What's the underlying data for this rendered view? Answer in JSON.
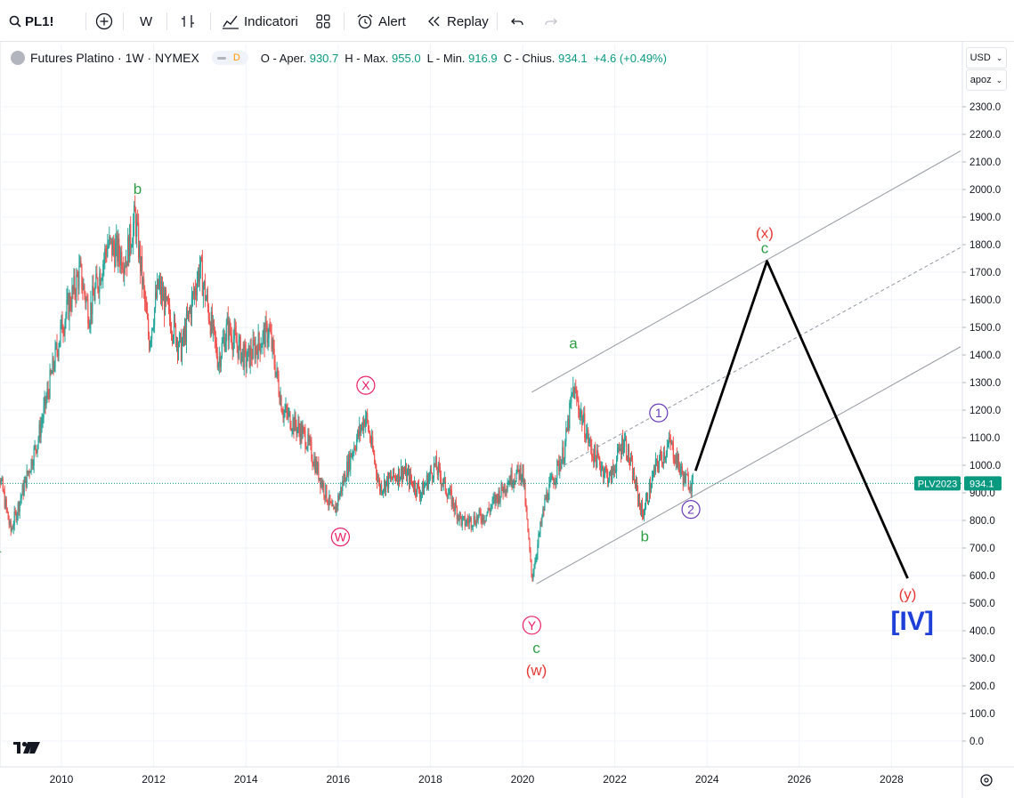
{
  "toolbar": {
    "symbol": "PL1!",
    "interval": "W",
    "indicators_label": "Indicatori",
    "alert_label": "Alert",
    "replay_label": "Replay"
  },
  "legend": {
    "title": "Futures Platino · 1W · NYMEX",
    "badge": "D",
    "open_label": "O - Aper.",
    "open": "930.7",
    "high_label": "H - Max.",
    "high": "955.0",
    "low_label": "L - Min.",
    "low": "916.9",
    "close_label": "C - Chius.",
    "close": "934.1",
    "change": "+4.6 (+0.49%)"
  },
  "price_axis": {
    "currency_button": "USD",
    "scale_button": "apoz",
    "ticks": [
      "2300.0",
      "2200.0",
      "2100.0",
      "2000.0",
      "1900.0",
      "1800.0",
      "1700.0",
      "1600.0",
      "1500.0",
      "1400.0",
      "1300.0",
      "1200.0",
      "1100.0",
      "1000.0",
      "900.0",
      "800.0",
      "700.0",
      "600.0",
      "500.0",
      "400.0",
      "300.0",
      "200.0",
      "100.0",
      "0.0"
    ],
    "last_price_tag": "934.1",
    "contract_tag": "PLV2023"
  },
  "time_axis": {
    "ticks": [
      "2010",
      "2012",
      "2014",
      "2016",
      "2018",
      "2020",
      "2022",
      "2024",
      "2026",
      "2028"
    ]
  },
  "colors": {
    "up": "#26a69a",
    "down": "#ef5350",
    "wave_green": "#2e9e47",
    "wave_pink": "#e91e63",
    "wave_red": "#e53935",
    "wave_purple": "#673ab7",
    "wave_blue": "#1e40d8",
    "projection": "#000000",
    "channel": "#9598a1",
    "last_price": "#089981"
  },
  "chart_data": {
    "type": "candlestick",
    "title": "Futures Platino · 1W · NYMEX",
    "ylim": [
      0,
      2300
    ],
    "x_range": [
      "2009",
      "2028"
    ],
    "price_path": [
      {
        "x": 2008.5,
        "y": 1100
      },
      {
        "x": 2008.9,
        "y": 760
      },
      {
        "x": 2009.5,
        "y": 1100
      },
      {
        "x": 2010.0,
        "y": 1500
      },
      {
        "x": 2010.4,
        "y": 1700
      },
      {
        "x": 2010.6,
        "y": 1550
      },
      {
        "x": 2011.0,
        "y": 1800
      },
      {
        "x": 2011.4,
        "y": 1750
      },
      {
        "x": 2011.6,
        "y": 1900
      },
      {
        "x": 2011.9,
        "y": 1450
      },
      {
        "x": 2012.1,
        "y": 1650
      },
      {
        "x": 2012.6,
        "y": 1420
      },
      {
        "x": 2013.0,
        "y": 1720
      },
      {
        "x": 2013.4,
        "y": 1380
      },
      {
        "x": 2013.6,
        "y": 1500
      },
      {
        "x": 2014.0,
        "y": 1380
      },
      {
        "x": 2014.5,
        "y": 1490
      },
      {
        "x": 2014.8,
        "y": 1200
      },
      {
        "x": 2015.3,
        "y": 1100
      },
      {
        "x": 2015.9,
        "y": 820
      },
      {
        "x": 2016.3,
        "y": 1050
      },
      {
        "x": 2016.6,
        "y": 1180
      },
      {
        "x": 2016.9,
        "y": 920
      },
      {
        "x": 2017.4,
        "y": 980
      },
      {
        "x": 2017.8,
        "y": 900
      },
      {
        "x": 2018.1,
        "y": 1000
      },
      {
        "x": 2018.7,
        "y": 790
      },
      {
        "x": 2019.2,
        "y": 820
      },
      {
        "x": 2019.7,
        "y": 950
      },
      {
        "x": 2020.0,
        "y": 980
      },
      {
        "x": 2020.2,
        "y": 590
      },
      {
        "x": 2020.5,
        "y": 880
      },
      {
        "x": 2020.9,
        "y": 1050
      },
      {
        "x": 2021.1,
        "y": 1280
      },
      {
        "x": 2021.5,
        "y": 1050
      },
      {
        "x": 2021.9,
        "y": 950
      },
      {
        "x": 2022.2,
        "y": 1100
      },
      {
        "x": 2022.6,
        "y": 820
      },
      {
        "x": 2022.9,
        "y": 1000
      },
      {
        "x": 2023.2,
        "y": 1080
      },
      {
        "x": 2023.5,
        "y": 950
      },
      {
        "x": 2023.7,
        "y": 934
      }
    ],
    "last_price": 934.1,
    "projection": [
      {
        "x": 2023.75,
        "y": 980
      },
      {
        "x": 2025.3,
        "y": 1740
      },
      {
        "x": 2028.35,
        "y": 590
      }
    ],
    "channel": [
      {
        "name": "upper",
        "from": {
          "x": 2020.2,
          "y": 1265
        },
        "to": {
          "x": 2029.5,
          "y": 2140
        }
      },
      {
        "name": "middle",
        "from": {
          "x": 2020.9,
          "y": 1000
        },
        "to": {
          "x": 2029.5,
          "y": 1790
        }
      },
      {
        "name": "lower",
        "from": {
          "x": 2020.3,
          "y": 570
        },
        "to": {
          "x": 2029.5,
          "y": 1430
        }
      }
    ],
    "annotations": [
      {
        "text": "a",
        "x": 2008.6,
        "y": 700,
        "color": "wave_green"
      },
      {
        "text": "b",
        "x": 2011.65,
        "y": 2000,
        "color": "wave_green"
      },
      {
        "text": "X",
        "x": 2016.6,
        "y": 1290,
        "color": "wave_pink",
        "circled": true
      },
      {
        "text": "W",
        "x": 2016.05,
        "y": 740,
        "color": "wave_pink",
        "circled": true
      },
      {
        "text": "Y",
        "x": 2020.2,
        "y": 420,
        "color": "wave_pink",
        "circled": true
      },
      {
        "text": "c",
        "x": 2020.3,
        "y": 335,
        "color": "wave_green"
      },
      {
        "text": "(w)",
        "x": 2020.3,
        "y": 255,
        "color": "wave_red"
      },
      {
        "text": "a",
        "x": 2021.1,
        "y": 1440,
        "color": "wave_green"
      },
      {
        "text": "b",
        "x": 2022.65,
        "y": 740,
        "color": "wave_green"
      },
      {
        "text": "1",
        "x": 2022.95,
        "y": 1190,
        "color": "wave_purple",
        "circled": true
      },
      {
        "text": "2",
        "x": 2023.65,
        "y": 840,
        "color": "wave_purple",
        "circled": true
      },
      {
        "text": "(x)",
        "x": 2025.25,
        "y": 1840,
        "color": "wave_red"
      },
      {
        "text": "c",
        "x": 2025.25,
        "y": 1785,
        "color": "wave_green"
      },
      {
        "text": "(y)",
        "x": 2028.35,
        "y": 530,
        "color": "wave_red"
      },
      {
        "text": "[IV]",
        "x": 2028.45,
        "y": 435,
        "color": "wave_blue"
      }
    ]
  }
}
